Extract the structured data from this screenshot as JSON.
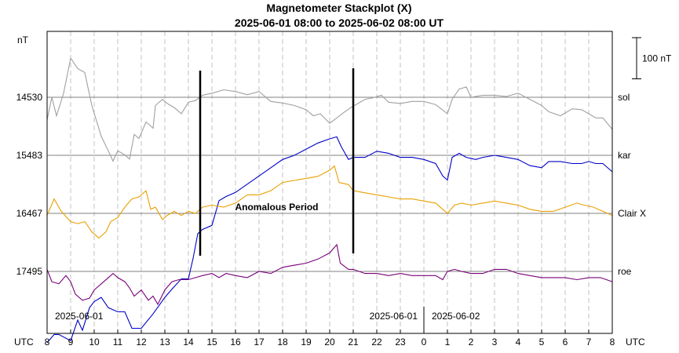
{
  "chart_data": {
    "type": "line",
    "title": "Magnetometer Stackplot (X)",
    "subtitle": "2025-06-01 08:00 to 2025-06-02 08:00 UT",
    "y_unit": "nT",
    "x_unit": "UTC",
    "scale_bar_label": "100 nT",
    "scale_bar_nT": 100,
    "hours_start": 8,
    "x_tick_labels": [
      "8",
      "9",
      "10",
      "11",
      "12",
      "13",
      "14",
      "15",
      "16",
      "17",
      "18",
      "19",
      "20",
      "21",
      "22",
      "23",
      "0",
      "1",
      "2",
      "3",
      "4",
      "5",
      "6",
      "7",
      "8"
    ],
    "date_labels": [
      "2025-06-01",
      "2025-06-01",
      "2025-06-02"
    ],
    "annotation": {
      "text": "Anomalous Period",
      "start_hours": 6.5,
      "end_hours": 13.0
    },
    "series": [
      {
        "name": "sol",
        "baseline_label": "14530",
        "color": "#a0a0a0",
        "points": [
          [
            0,
            -55
          ],
          [
            0.2,
            0
          ],
          [
            0.4,
            -45
          ],
          [
            0.7,
            10
          ],
          [
            1.0,
            95
          ],
          [
            1.3,
            70
          ],
          [
            1.6,
            60
          ],
          [
            1.9,
            -20
          ],
          [
            2.3,
            -95
          ],
          [
            2.6,
            -130
          ],
          [
            2.8,
            -155
          ],
          [
            3.0,
            -130
          ],
          [
            3.3,
            -140
          ],
          [
            3.5,
            -150
          ],
          [
            3.7,
            -90
          ],
          [
            3.9,
            -100
          ],
          [
            4.2,
            -60
          ],
          [
            4.5,
            -75
          ],
          [
            4.6,
            -20
          ],
          [
            4.9,
            -5
          ],
          [
            5.1,
            -15
          ],
          [
            5.4,
            -25
          ],
          [
            5.7,
            -40
          ],
          [
            6.0,
            -12
          ],
          [
            6.3,
            -8
          ],
          [
            6.6,
            5
          ],
          [
            7.0,
            10
          ],
          [
            7.5,
            18
          ],
          [
            8.0,
            14
          ],
          [
            8.5,
            6
          ],
          [
            9.0,
            14
          ],
          [
            9.5,
            -10
          ],
          [
            10.0,
            -14
          ],
          [
            10.5,
            -20
          ],
          [
            11.0,
            -30
          ],
          [
            11.3,
            -45
          ],
          [
            11.6,
            -40
          ],
          [
            12.0,
            -63
          ],
          [
            12.3,
            -50
          ],
          [
            12.6,
            -37
          ],
          [
            12.9,
            -25
          ],
          [
            13.2,
            -15
          ],
          [
            13.5,
            -5
          ],
          [
            13.8,
            -2
          ],
          [
            14.2,
            5
          ],
          [
            14.5,
            -12
          ],
          [
            15.0,
            -15
          ],
          [
            15.5,
            -10
          ],
          [
            16.0,
            -10
          ],
          [
            16.5,
            -18
          ],
          [
            17.0,
            -40
          ],
          [
            17.2,
            -5
          ],
          [
            17.5,
            20
          ],
          [
            17.8,
            25
          ],
          [
            18.0,
            0
          ],
          [
            18.5,
            5
          ],
          [
            19.0,
            5
          ],
          [
            19.5,
            2
          ],
          [
            20.0,
            10
          ],
          [
            20.5,
            -5
          ],
          [
            21.0,
            -20
          ],
          [
            21.3,
            -35
          ],
          [
            21.8,
            -45
          ],
          [
            22.3,
            -28
          ],
          [
            22.7,
            -30
          ],
          [
            23.0,
            -40
          ],
          [
            23.3,
            -50
          ],
          [
            23.6,
            -50
          ],
          [
            24.0,
            -78
          ]
        ]
      },
      {
        "name": "kar",
        "baseline_label": "15483",
        "color": "#0000c8",
        "points": [
          [
            0,
            -455
          ],
          [
            0.3,
            -435
          ],
          [
            0.5,
            -435
          ],
          [
            1.0,
            -450
          ],
          [
            1.3,
            -400
          ],
          [
            1.5,
            -425
          ],
          [
            1.8,
            -370
          ],
          [
            2.0,
            -355
          ],
          [
            2.3,
            -345
          ],
          [
            2.6,
            -370
          ],
          [
            3.0,
            -380
          ],
          [
            3.3,
            -380
          ],
          [
            3.6,
            -420
          ],
          [
            4.0,
            -420
          ],
          [
            4.5,
            -385
          ],
          [
            5.0,
            -345
          ],
          [
            5.3,
            -325
          ],
          [
            5.7,
            -300
          ],
          [
            6.0,
            -300
          ],
          [
            6.2,
            -250
          ],
          [
            6.4,
            -190
          ],
          [
            6.6,
            -180
          ],
          [
            7.0,
            -170
          ],
          [
            7.3,
            -110
          ],
          [
            7.6,
            -100
          ],
          [
            8.0,
            -90
          ],
          [
            8.5,
            -70
          ],
          [
            9.0,
            -50
          ],
          [
            9.5,
            -30
          ],
          [
            10.0,
            -10
          ],
          [
            10.5,
            0
          ],
          [
            11.0,
            15
          ],
          [
            11.5,
            30
          ],
          [
            12.0,
            40
          ],
          [
            12.3,
            45
          ],
          [
            12.5,
            20
          ],
          [
            12.8,
            -10
          ],
          [
            13.0,
            -5
          ],
          [
            13.5,
            -5
          ],
          [
            14.0,
            10
          ],
          [
            14.5,
            5
          ],
          [
            15.0,
            -5
          ],
          [
            15.5,
            -5
          ],
          [
            16.0,
            -10
          ],
          [
            16.5,
            -20
          ],
          [
            16.8,
            -50
          ],
          [
            17.0,
            -60
          ],
          [
            17.2,
            -5
          ],
          [
            17.5,
            5
          ],
          [
            17.8,
            -5
          ],
          [
            18.2,
            -10
          ],
          [
            18.5,
            -5
          ],
          [
            19.0,
            0
          ],
          [
            19.5,
            -5
          ],
          [
            20.0,
            -10
          ],
          [
            20.5,
            -25
          ],
          [
            21.0,
            -30
          ],
          [
            21.3,
            -15
          ],
          [
            21.8,
            -15
          ],
          [
            22.3,
            -20
          ],
          [
            22.7,
            -20
          ],
          [
            23.0,
            -15
          ],
          [
            23.3,
            -20
          ],
          [
            23.6,
            -20
          ],
          [
            24.0,
            -40
          ]
        ]
      },
      {
        "name": "Clair X",
        "baseline_label": "16467",
        "color": "#e8a000",
        "points": [
          [
            0,
            -5
          ],
          [
            0.3,
            35
          ],
          [
            0.6,
            5
          ],
          [
            1.0,
            -20
          ],
          [
            1.3,
            -25
          ],
          [
            1.6,
            -20
          ],
          [
            1.9,
            -45
          ],
          [
            2.2,
            -60
          ],
          [
            2.5,
            -45
          ],
          [
            2.7,
            -20
          ],
          [
            3.0,
            -10
          ],
          [
            3.3,
            15
          ],
          [
            3.6,
            35
          ],
          [
            3.9,
            40
          ],
          [
            4.2,
            55
          ],
          [
            4.4,
            10
          ],
          [
            4.6,
            15
          ],
          [
            4.9,
            -15
          ],
          [
            5.1,
            -5
          ],
          [
            5.4,
            5
          ],
          [
            5.7,
            -5
          ],
          [
            6.0,
            5
          ],
          [
            6.3,
            0
          ],
          [
            6.6,
            15
          ],
          [
            7.0,
            20
          ],
          [
            7.5,
            15
          ],
          [
            8.0,
            25
          ],
          [
            8.5,
            45
          ],
          [
            9.0,
            45
          ],
          [
            9.5,
            55
          ],
          [
            10.0,
            75
          ],
          [
            10.5,
            80
          ],
          [
            11.0,
            85
          ],
          [
            11.5,
            90
          ],
          [
            12.0,
            105
          ],
          [
            12.2,
            115
          ],
          [
            12.4,
            75
          ],
          [
            12.8,
            70
          ],
          [
            13.0,
            55
          ],
          [
            13.5,
            50
          ],
          [
            14.0,
            45
          ],
          [
            14.5,
            40
          ],
          [
            15.0,
            35
          ],
          [
            15.5,
            35
          ],
          [
            16.0,
            30
          ],
          [
            16.5,
            25
          ],
          [
            16.8,
            10
          ],
          [
            17.0,
            0
          ],
          [
            17.3,
            20
          ],
          [
            17.6,
            25
          ],
          [
            18.0,
            20
          ],
          [
            18.5,
            25
          ],
          [
            19.0,
            30
          ],
          [
            19.5,
            25
          ],
          [
            20.0,
            20
          ],
          [
            20.5,
            10
          ],
          [
            21.0,
            5
          ],
          [
            21.5,
            5
          ],
          [
            22.0,
            15
          ],
          [
            22.5,
            25
          ],
          [
            22.8,
            20
          ],
          [
            23.2,
            15
          ],
          [
            23.6,
            5
          ],
          [
            24.0,
            -5
          ]
        ]
      },
      {
        "name": "roe",
        "baseline_label": "17495",
        "color": "#780078",
        "points": [
          [
            0,
            5
          ],
          [
            0.2,
            -25
          ],
          [
            0.5,
            -30
          ],
          [
            0.8,
            -10
          ],
          [
            1.0,
            -25
          ],
          [
            1.2,
            -55
          ],
          [
            1.5,
            -70
          ],
          [
            1.8,
            -65
          ],
          [
            2.0,
            -45
          ],
          [
            2.3,
            -30
          ],
          [
            2.6,
            -15
          ],
          [
            2.8,
            -5
          ],
          [
            3.0,
            -15
          ],
          [
            3.3,
            -25
          ],
          [
            3.5,
            -40
          ],
          [
            3.7,
            -60
          ],
          [
            4.0,
            -45
          ],
          [
            4.3,
            -70
          ],
          [
            4.5,
            -60
          ],
          [
            4.7,
            -80
          ],
          [
            5.0,
            -45
          ],
          [
            5.3,
            -25
          ],
          [
            5.6,
            -20
          ],
          [
            6.0,
            -20
          ],
          [
            6.3,
            -15
          ],
          [
            6.6,
            -10
          ],
          [
            7.0,
            -5
          ],
          [
            7.3,
            -15
          ],
          [
            7.6,
            -5
          ],
          [
            8.0,
            -10
          ],
          [
            8.5,
            -15
          ],
          [
            9.0,
            0
          ],
          [
            9.5,
            -5
          ],
          [
            10.0,
            10
          ],
          [
            10.5,
            15
          ],
          [
            11.0,
            20
          ],
          [
            11.5,
            30
          ],
          [
            12.0,
            45
          ],
          [
            12.3,
            65
          ],
          [
            12.45,
            20
          ],
          [
            12.8,
            5
          ],
          [
            13.0,
            5
          ],
          [
            13.5,
            -5
          ],
          [
            14.0,
            -5
          ],
          [
            14.5,
            -10
          ],
          [
            15.0,
            -5
          ],
          [
            15.5,
            -10
          ],
          [
            16.0,
            -10
          ],
          [
            16.5,
            -10
          ],
          [
            16.8,
            -20
          ],
          [
            17.0,
            0
          ],
          [
            17.3,
            5
          ],
          [
            17.6,
            0
          ],
          [
            18.0,
            -5
          ],
          [
            18.5,
            -5
          ],
          [
            19.0,
            5
          ],
          [
            19.5,
            5
          ],
          [
            20.0,
            -5
          ],
          [
            20.5,
            -10
          ],
          [
            21.0,
            -15
          ],
          [
            21.5,
            -15
          ],
          [
            22.0,
            -15
          ],
          [
            22.5,
            -20
          ],
          [
            23.0,
            -15
          ],
          [
            23.5,
            -15
          ],
          [
            24.0,
            -25
          ]
        ]
      }
    ]
  }
}
